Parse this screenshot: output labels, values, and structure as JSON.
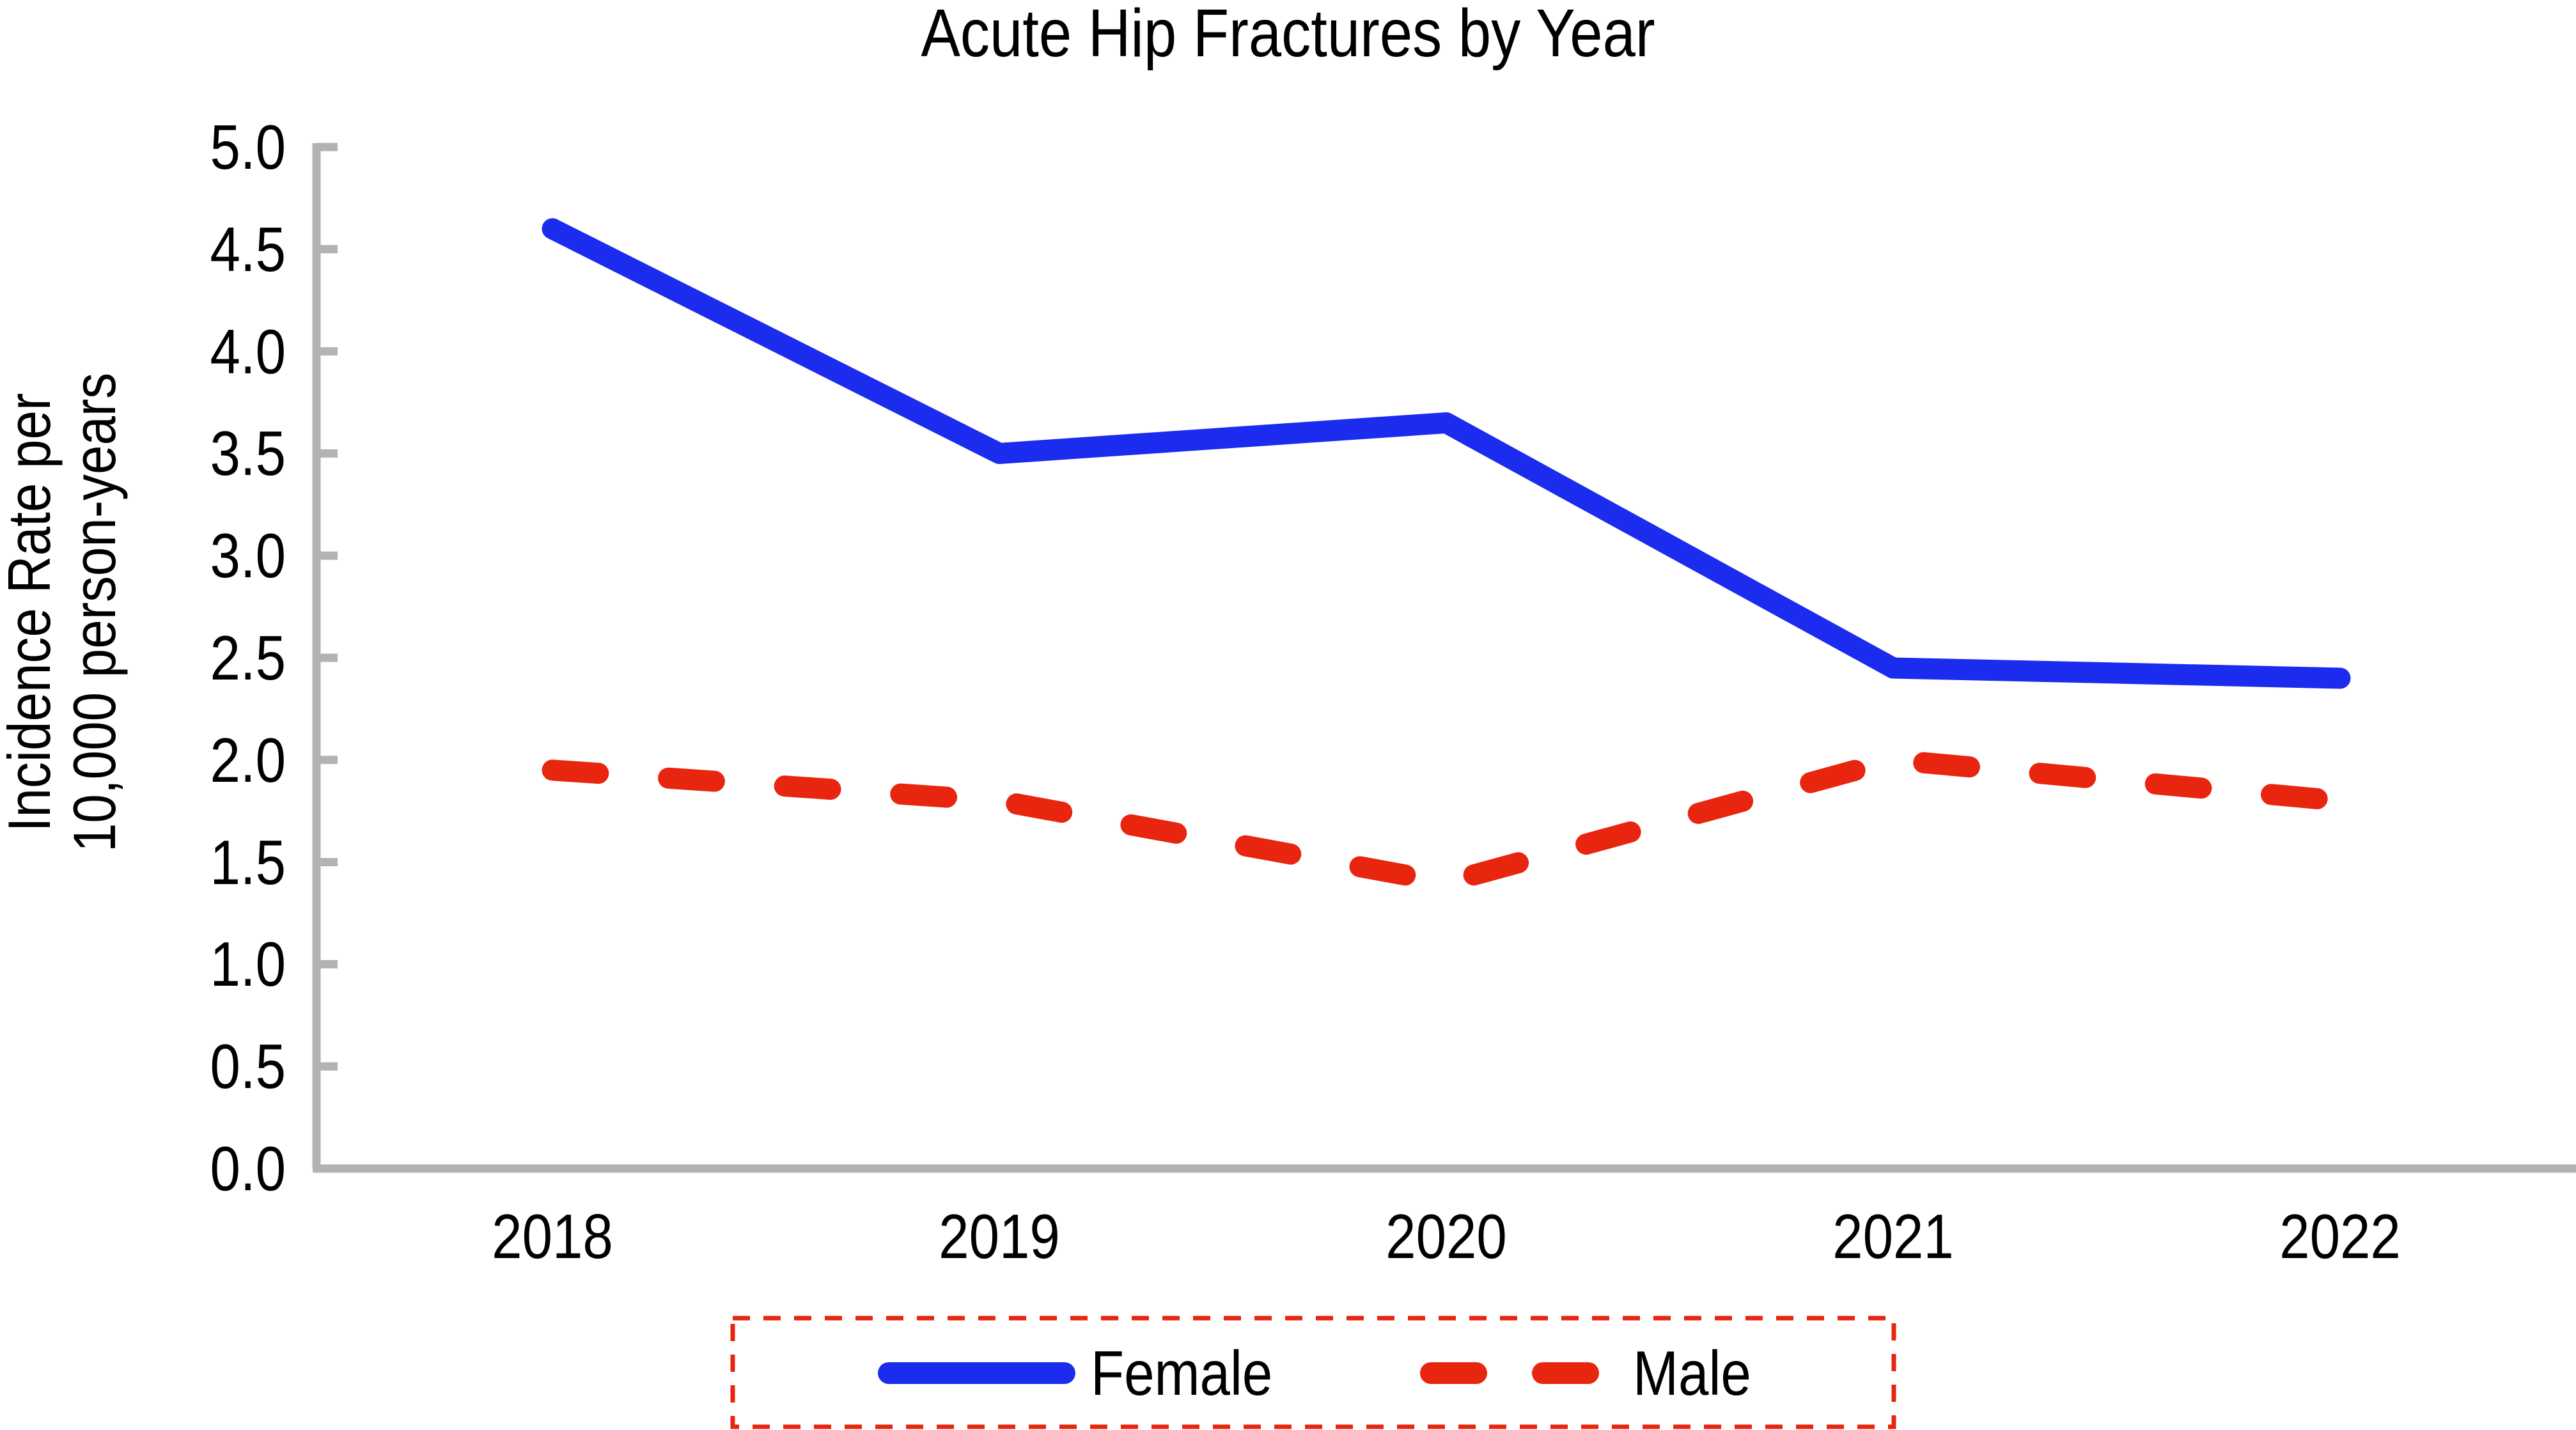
{
  "title": "Acute Hip Fractures by Year",
  "y_axis": {
    "label_line1": "Incidence Rate per",
    "label_line2": "10,000 person-years",
    "ticks": [
      "0.0",
      "0.5",
      "1.0",
      "1.5",
      "2.0",
      "2.5",
      "3.0",
      "3.5",
      "4.0",
      "4.5",
      "5.0"
    ]
  },
  "x_axis": {
    "categories": [
      "2018",
      "2019",
      "2020",
      "2021",
      "2022"
    ]
  },
  "legend": {
    "position": "bottom",
    "items": [
      {
        "label": "Female",
        "color": "#1b2cee",
        "style": "solid"
      },
      {
        "label": "Male",
        "color": "#e8250e",
        "style": "dashed"
      }
    ]
  },
  "style": {
    "female_color": "#1b2cee",
    "male_color": "#e8250e",
    "axis_color": "#b3b3b3",
    "text_color": "#000000",
    "background": "#ffffff"
  },
  "chart_data": {
    "type": "line",
    "title": "Acute Hip Fractures by Year",
    "xlabel": "",
    "ylabel": "Incidence Rate per 10,000 person-years",
    "categories": [
      "2018",
      "2019",
      "2020",
      "2021",
      "2022"
    ],
    "series": [
      {
        "name": "Female",
        "color": "#1b2cee",
        "dashed": false,
        "values": [
          4.6,
          3.5,
          3.65,
          2.45,
          2.4
        ]
      },
      {
        "name": "Male",
        "color": "#e8250e",
        "dashed": true,
        "values": [
          1.95,
          1.8,
          1.4,
          2.0,
          1.8
        ]
      }
    ],
    "ylim": [
      0.0,
      5.0
    ],
    "ytick_step": 0.5,
    "grid": false,
    "legend_position": "bottom",
    "legend_box": "red-dashed-rectangle"
  }
}
